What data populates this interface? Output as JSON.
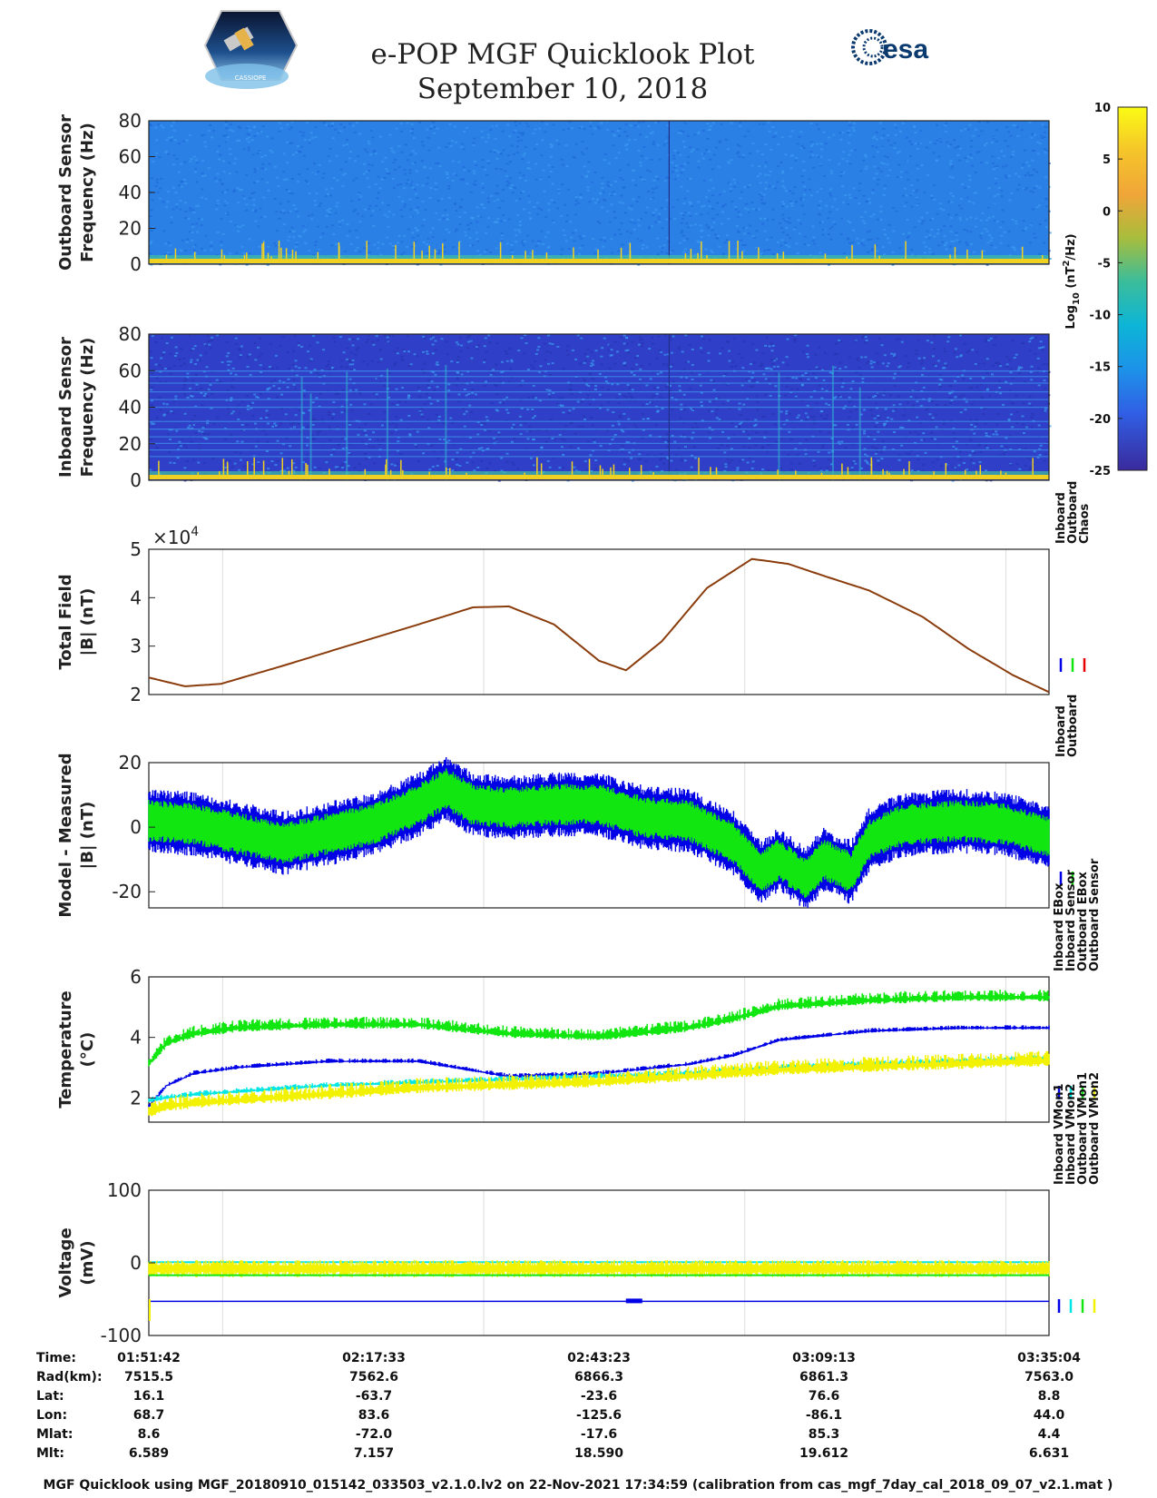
{
  "header": {
    "title": "e-POP MGF Quicklook Plot",
    "date": "September 10, 2018",
    "logo_left": "CASSIOPE",
    "logo_right": "esa"
  },
  "colors": {
    "blue": "#0000e6",
    "green": "#11e611",
    "red": "#e60000",
    "cyan": "#00e6e6",
    "yellow": "#f2f200",
    "brown": "#8a3c0c",
    "spec_bg_outboard": "#2b80e6",
    "spec_bg_inboard": "#2f3fc8",
    "spec_line": "#f0d020"
  },
  "colorbar": {
    "ticks": [
      "10",
      "5",
      "0",
      "-5",
      "-10",
      "-15",
      "-20",
      "-25"
    ],
    "label_base": "Log",
    "label_sub": "10",
    "label_unit_open": " (nT",
    "label_unit_sup": "2",
    "label_unit_close": "/Hz)",
    "range": [
      -25,
      10
    ]
  },
  "chart_data": [
    {
      "id": "outboard-spectrogram",
      "type": "heatmap",
      "ylabel": [
        "Outboard Sensor",
        "Frequency (Hz)"
      ],
      "ylim": [
        0,
        80
      ],
      "yticks": [
        "80",
        "60",
        "40",
        "20",
        "0"
      ]
    },
    {
      "id": "inboard-spectrogram",
      "type": "heatmap",
      "ylabel": [
        "Inboard Sensor",
        "Frequency (Hz)"
      ],
      "ylim": [
        0,
        80
      ],
      "yticks": [
        "80",
        "60",
        "40",
        "20",
        "0"
      ]
    },
    {
      "id": "total-field",
      "type": "line",
      "ylabel": [
        "Total Field",
        "|B| (nT)"
      ],
      "multiplier": "×10",
      "multiplier_exp": "4",
      "ylim": [
        2,
        5
      ],
      "yticks": [
        "5",
        "4",
        "3",
        "2"
      ],
      "legend": [
        "Inboard",
        "Outboard",
        "Chaos"
      ],
      "x": [
        0,
        0.04,
        0.08,
        0.15,
        0.22,
        0.3,
        0.36,
        0.4,
        0.45,
        0.5,
        0.53,
        0.57,
        0.62,
        0.67,
        0.71,
        0.75,
        0.8,
        0.86,
        0.91,
        0.96,
        1.0
      ],
      "series": [
        {
          "name": "Outboard",
          "values": [
            2.35,
            2.17,
            2.22,
            2.6,
            3.0,
            3.45,
            3.8,
            3.82,
            3.45,
            2.7,
            2.5,
            3.1,
            4.2,
            4.8,
            4.7,
            4.45,
            4.15,
            3.6,
            2.95,
            2.4,
            2.05
          ]
        }
      ]
    },
    {
      "id": "model-measured",
      "type": "line",
      "ylabel": [
        "Model - Measured",
        "|B| (nT)"
      ],
      "ylim": [
        -25,
        20
      ],
      "yticks": [
        "20",
        "0",
        "-20"
      ],
      "legend": [
        "Inboard",
        "Outboard"
      ],
      "x": [
        0,
        0.05,
        0.1,
        0.15,
        0.2,
        0.25,
        0.3,
        0.33,
        0.36,
        0.4,
        0.45,
        0.5,
        0.55,
        0.6,
        0.65,
        0.68,
        0.7,
        0.73,
        0.75,
        0.78,
        0.8,
        0.83,
        0.85,
        0.9,
        0.95,
        1.0
      ],
      "series": [
        {
          "name": "Inboard",
          "values": [
            2,
            1,
            -2,
            -5,
            -2,
            1,
            7,
            12,
            7,
            6,
            7,
            7,
            3,
            2,
            -5,
            -14,
            -10,
            -16,
            -10,
            -14,
            -4,
            0,
            1,
            2,
            1,
            -3
          ]
        },
        {
          "name": "Outboard",
          "values": [
            2,
            1,
            -2,
            -5,
            -2,
            1,
            7,
            12,
            7,
            6,
            7,
            7,
            3,
            2,
            -5,
            -14,
            -10,
            -16,
            -10,
            -14,
            -4,
            0,
            1,
            2,
            1,
            -3
          ]
        }
      ]
    },
    {
      "id": "temperature",
      "type": "line",
      "ylabel": [
        "Temperature",
        "(°C)"
      ],
      "ylim": [
        1.2,
        6
      ],
      "yticks": [
        "6",
        "4",
        "2"
      ],
      "legend": [
        "Inboard EBox",
        "Inboard Sensor",
        "Outboard EBox",
        "Outboard Sensor"
      ],
      "x": [
        0,
        0.02,
        0.05,
        0.1,
        0.2,
        0.3,
        0.4,
        0.5,
        0.6,
        0.65,
        0.7,
        0.8,
        0.9,
        1.0
      ],
      "series": [
        {
          "name": "Inboard EBox",
          "values": [
            1.7,
            2.4,
            2.8,
            3.0,
            3.2,
            3.2,
            2.7,
            2.8,
            3.1,
            3.4,
            3.9,
            4.2,
            4.3,
            4.3
          ]
        },
        {
          "name": "Inboard Sensor",
          "values": [
            1.9,
            2.0,
            2.1,
            2.2,
            2.4,
            2.5,
            2.6,
            2.7,
            2.8,
            2.9,
            3.0,
            3.1,
            3.2,
            3.3
          ]
        },
        {
          "name": "Outboard EBox",
          "values": [
            3.1,
            3.8,
            4.1,
            4.3,
            4.4,
            4.4,
            4.1,
            4.0,
            4.3,
            4.6,
            5.0,
            5.2,
            5.3,
            5.3
          ]
        },
        {
          "name": "Outboard Sensor",
          "values": [
            1.5,
            1.7,
            1.8,
            1.9,
            2.1,
            2.3,
            2.4,
            2.5,
            2.7,
            2.8,
            2.9,
            3.0,
            3.1,
            3.2
          ]
        }
      ]
    },
    {
      "id": "voltage",
      "type": "line",
      "ylabel": [
        "Voltage",
        "(mV)"
      ],
      "ylim": [
        -100,
        100
      ],
      "yticks": [
        "100",
        "0",
        "-100"
      ],
      "legend": [
        "Inboard VMon1",
        "Inboard VMon2",
        "Outboard VMon1",
        "Outboard VMon2"
      ],
      "x": [
        0,
        1
      ],
      "series": [
        {
          "name": "Inboard VMon1",
          "values": [
            -53,
            -53
          ]
        },
        {
          "name": "Inboard VMon2",
          "values": [
            1,
            1
          ]
        },
        {
          "name": "Outboard VMon1",
          "values": [
            -17,
            -17
          ]
        },
        {
          "name": "Outboard VMon2",
          "values": [
            -8,
            -8
          ]
        }
      ]
    }
  ],
  "ephemeris": {
    "rows": [
      {
        "label": "Time:",
        "values": [
          "01:51:42",
          "02:17:33",
          "02:43:23",
          "03:09:13",
          "03:35:04"
        ]
      },
      {
        "label": "Rad(km):",
        "values": [
          "7515.5",
          "7562.6",
          "6866.3",
          "6861.3",
          "7563.0"
        ]
      },
      {
        "label": "Lat:",
        "values": [
          "16.1",
          "-63.7",
          "-23.6",
          "76.6",
          "8.8"
        ]
      },
      {
        "label": "Lon:",
        "values": [
          "68.7",
          "83.6",
          "-125.6",
          "-86.1",
          "44.0"
        ]
      },
      {
        "label": "Mlat:",
        "values": [
          "8.6",
          "-72.0",
          "-17.6",
          "85.3",
          "4.4"
        ]
      },
      {
        "label": "Mlt:",
        "values": [
          "6.589",
          "7.157",
          "18.590",
          "19.612",
          "6.631"
        ]
      }
    ]
  },
  "footer": "MGF Quicklook using MGF_20180910_015142_033503_v2.1.0.lv2 on 22-Nov-2021 17:34:59 (calibration from cas_mgf_7day_cal_2018_09_07_v2.1.mat )"
}
